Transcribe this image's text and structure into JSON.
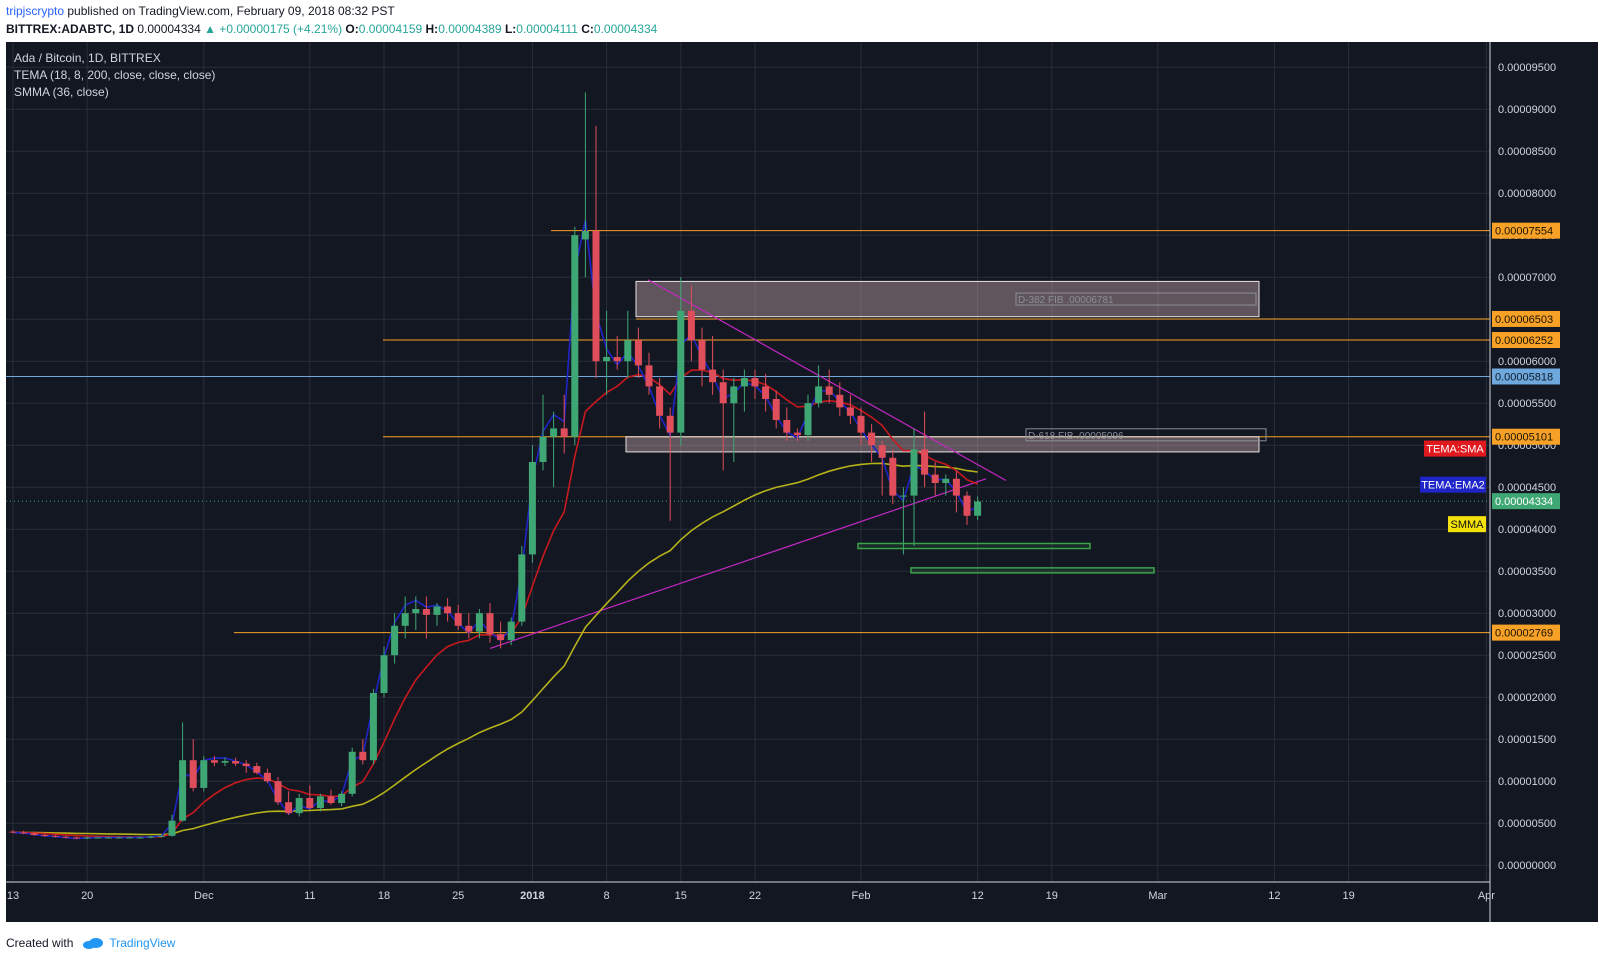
{
  "header": {
    "author": "tripjscrypto",
    "published_text": "published on TradingView.com, February 09, 2018 08:32 PST"
  },
  "ohlc": {
    "symbol": "BITTREX:ADABTC, 1D",
    "price": "0.00004334",
    "change": "▲ +0.00000175 (+4.21%)",
    "o_label": "O:",
    "o_value": "0.00004159",
    "h_label": "H:",
    "h_value": "0.00004389",
    "l_label": "L:",
    "l_value": "0.00004111",
    "c_label": "C:",
    "c_value": "0.00004334"
  },
  "legend": {
    "title": "Ada / Bitcoin, 1D, BITTREX",
    "tema": "TEMA (18, 8, 200, close, close, close)",
    "smma": "SMMA (36, close)"
  },
  "colors": {
    "background": "#131722",
    "grid": "#2a2e39",
    "up": "#3fa774",
    "down": "#e04e5b",
    "tema_blue": "#1f24c8",
    "tema_red": "#c8191e",
    "smma": "#b6b21a",
    "level_orange": "#f7a126",
    "trend_magenta": "#c427c4",
    "blue_level": "#6fa8dc",
    "green_box": "#3aa34a"
  },
  "chart_data": {
    "type": "candlestick",
    "price_axis": {
      "ticks": [
        "0.00009500",
        "0.00009000",
        "0.00008500",
        "0.00008000",
        "0.00007500",
        "0.00007000",
        "0.00006500",
        "0.00006000",
        "0.00005500",
        "0.00005000",
        "0.00004500",
        "0.00004000",
        "0.00003500",
        "0.00003000",
        "0.00002500",
        "0.00002000",
        "0.00001500",
        "0.00001000",
        "0.00000500",
        "0.00000000"
      ],
      "ylim": [
        -2e-06,
        9.8e-05
      ]
    },
    "time_axis": {
      "labels": [
        "13",
        "20",
        "Dec",
        "11",
        "18",
        "25",
        "2018",
        "8",
        "15",
        "22",
        "Feb",
        "12",
        "19",
        "Mar",
        "12",
        "19",
        "Apr"
      ]
    },
    "candles": [
      {
        "d": "2017-11-13",
        "o": 4e-06,
        "h": 4.2e-06,
        "l": 3.8e-06,
        "c": 3.9e-06
      },
      {
        "d": "2017-11-14",
        "o": 3.9e-06,
        "h": 4.1e-06,
        "l": 3.7e-06,
        "c": 3.8e-06
      },
      {
        "d": "2017-11-15",
        "o": 3.8e-06,
        "h": 4e-06,
        "l": 3.5e-06,
        "c": 3.6e-06
      },
      {
        "d": "2017-11-16",
        "o": 3.6e-06,
        "h": 3.8e-06,
        "l": 3.4e-06,
        "c": 3.5e-06
      },
      {
        "d": "2017-11-17",
        "o": 3.5e-06,
        "h": 3.6e-06,
        "l": 3.3e-06,
        "c": 3.4e-06
      },
      {
        "d": "2017-11-18",
        "o": 3.4e-06,
        "h": 3.5e-06,
        "l": 3.2e-06,
        "c": 3.3e-06
      },
      {
        "d": "2017-11-19",
        "o": 3.3e-06,
        "h": 3.4e-06,
        "l": 3.1e-06,
        "c": 3.2e-06
      },
      {
        "d": "2017-11-20",
        "o": 3.2e-06,
        "h": 3.4e-06,
        "l": 3.1e-06,
        "c": 3.3e-06
      },
      {
        "d": "2017-11-21",
        "o": 3.3e-06,
        "h": 3.4e-06,
        "l": 3.2e-06,
        "c": 3.3e-06
      },
      {
        "d": "2017-11-22",
        "o": 3.3e-06,
        "h": 3.4e-06,
        "l": 3.2e-06,
        "c": 3.3e-06
      },
      {
        "d": "2017-11-23",
        "o": 3.3e-06,
        "h": 3.4e-06,
        "l": 3.2e-06,
        "c": 3.3e-06
      },
      {
        "d": "2017-11-24",
        "o": 3.3e-06,
        "h": 3.4e-06,
        "l": 3.2e-06,
        "c": 3.3e-06
      },
      {
        "d": "2017-11-25",
        "o": 3.3e-06,
        "h": 3.4e-06,
        "l": 3.2e-06,
        "c": 3.3e-06
      },
      {
        "d": "2017-11-26",
        "o": 3.3e-06,
        "h": 3.5e-06,
        "l": 3.2e-06,
        "c": 3.4e-06
      },
      {
        "d": "2017-11-27",
        "o": 3.4e-06,
        "h": 3.6e-06,
        "l": 3.3e-06,
        "c": 3.5e-06
      },
      {
        "d": "2017-11-28",
        "o": 3.5e-06,
        "h": 6e-06,
        "l": 3.4e-06,
        "c": 5.3e-06
      },
      {
        "d": "2017-11-29",
        "o": 5.3e-06,
        "h": 1.7e-05,
        "l": 5.2e-06,
        "c": 1.25e-05
      },
      {
        "d": "2017-11-30",
        "o": 1.25e-05,
        "h": 1.5e-05,
        "l": 8.8e-06,
        "c": 9.2e-06
      },
      {
        "d": "2017-12-01",
        "o": 9.2e-06,
        "h": 1.3e-05,
        "l": 8.8e-06,
        "c": 1.25e-05
      },
      {
        "d": "2017-12-02",
        "o": 1.25e-05,
        "h": 1.3e-05,
        "l": 1.18e-05,
        "c": 1.22e-05
      },
      {
        "d": "2017-12-03",
        "o": 1.22e-05,
        "h": 1.28e-05,
        "l": 1.18e-05,
        "c": 1.24e-05
      },
      {
        "d": "2017-12-04",
        "o": 1.24e-05,
        "h": 1.28e-05,
        "l": 1.18e-05,
        "c": 1.21e-05
      },
      {
        "d": "2017-12-05",
        "o": 1.21e-05,
        "h": 1.25e-05,
        "l": 1.1e-05,
        "c": 1.18e-05
      },
      {
        "d": "2017-12-06",
        "o": 1.18e-05,
        "h": 1.22e-05,
        "l": 1.08e-05,
        "c": 1.1e-05
      },
      {
        "d": "2017-12-07",
        "o": 1.1e-05,
        "h": 1.15e-05,
        "l": 9.8e-06,
        "c": 1e-05
      },
      {
        "d": "2017-12-08",
        "o": 1e-05,
        "h": 1.05e-05,
        "l": 7.2e-06,
        "c": 7.5e-06
      },
      {
        "d": "2017-12-09",
        "o": 7.5e-06,
        "h": 8.8e-06,
        "l": 6e-06,
        "c": 6.2e-06
      },
      {
        "d": "2017-12-10",
        "o": 6.2e-06,
        "h": 8.5e-06,
        "l": 5.8e-06,
        "c": 8e-06
      },
      {
        "d": "2017-12-11",
        "o": 8e-06,
        "h": 9.5e-06,
        "l": 6.6e-06,
        "c": 6.8e-06
      },
      {
        "d": "2017-12-12",
        "o": 6.8e-06,
        "h": 8.5e-06,
        "l": 6.4e-06,
        "c": 8.2e-06
      },
      {
        "d": "2017-12-13",
        "o": 8.2e-06,
        "h": 9e-06,
        "l": 7.2e-06,
        "c": 7.4e-06
      },
      {
        "d": "2017-12-14",
        "o": 7.4e-06,
        "h": 8.8e-06,
        "l": 7e-06,
        "c": 8.5e-06
      },
      {
        "d": "2017-12-15",
        "o": 8.5e-06,
        "h": 1.4e-05,
        "l": 8.2e-06,
        "c": 1.35e-05
      },
      {
        "d": "2017-12-16",
        "o": 1.35e-05,
        "h": 1.5e-05,
        "l": 1.2e-05,
        "c": 1.25e-05
      },
      {
        "d": "2017-12-17",
        "o": 1.25e-05,
        "h": 2.1e-05,
        "l": 1.2e-05,
        "c": 2.05e-05
      },
      {
        "d": "2017-12-18",
        "o": 2.05e-05,
        "h": 2.6e-05,
        "l": 2e-05,
        "c": 2.5e-05
      },
      {
        "d": "2017-12-19",
        "o": 2.5e-05,
        "h": 3e-05,
        "l": 2.4e-05,
        "c": 2.85e-05
      },
      {
        "d": "2017-12-20",
        "o": 2.85e-05,
        "h": 3.2e-05,
        "l": 2.7e-05,
        "c": 3e-05
      },
      {
        "d": "2017-12-21",
        "o": 3e-05,
        "h": 3.2e-05,
        "l": 2.8e-05,
        "c": 3.05e-05
      },
      {
        "d": "2017-12-22",
        "o": 3.05e-05,
        "h": 3.2e-05,
        "l": 2.7e-05,
        "c": 2.98e-05
      },
      {
        "d": "2017-12-23",
        "o": 2.98e-05,
        "h": 3.12e-05,
        "l": 2.85e-05,
        "c": 3.08e-05
      },
      {
        "d": "2017-12-24",
        "o": 3.08e-05,
        "h": 3.18e-05,
        "l": 2.9e-05,
        "c": 3e-05
      },
      {
        "d": "2017-12-25",
        "o": 3e-05,
        "h": 3.1e-05,
        "l": 2.8e-05,
        "c": 2.85e-05
      },
      {
        "d": "2017-12-26",
        "o": 2.85e-05,
        "h": 3e-05,
        "l": 2.7e-05,
        "c": 2.78e-05
      },
      {
        "d": "2017-12-27",
        "o": 2.78e-05,
        "h": 3.05e-05,
        "l": 2.7e-05,
        "c": 3e-05
      },
      {
        "d": "2017-12-28",
        "o": 3e-05,
        "h": 3.12e-05,
        "l": 2.65e-05,
        "c": 2.75e-05
      },
      {
        "d": "2017-12-29",
        "o": 2.75e-05,
        "h": 2.9e-05,
        "l": 2.58e-05,
        "c": 2.68e-05
      },
      {
        "d": "2017-12-30",
        "o": 2.68e-05,
        "h": 2.95e-05,
        "l": 2.62e-05,
        "c": 2.9e-05
      },
      {
        "d": "2017-12-31",
        "o": 2.9e-05,
        "h": 3.8e-05,
        "l": 2.85e-05,
        "c": 3.7e-05
      },
      {
        "d": "2018-01-01",
        "o": 3.7e-05,
        "h": 5e-05,
        "l": 3.6e-05,
        "c": 4.8e-05
      },
      {
        "d": "2018-01-02",
        "o": 4.8e-05,
        "h": 5.6e-05,
        "l": 4.7e-05,
        "c": 5.1e-05
      },
      {
        "d": "2018-01-03",
        "o": 5.1e-05,
        "h": 5.4e-05,
        "l": 4.5e-05,
        "c": 5.2e-05
      },
      {
        "d": "2018-01-04",
        "o": 5.2e-05,
        "h": 5.6e-05,
        "l": 4.9e-05,
        "c": 5.1e-05
      },
      {
        "d": "2018-01-05",
        "o": 5.1e-05,
        "h": 7.6e-05,
        "l": 5e-05,
        "c": 7.5e-05
      },
      {
        "d": "2018-01-06",
        "o": 7.45e-05,
        "h": 9.2e-05,
        "l": 7e-05,
        "c": 7.55e-05
      },
      {
        "d": "2018-01-07",
        "o": 7.55e-05,
        "h": 8.8e-05,
        "l": 5.8e-05,
        "c": 6e-05
      },
      {
        "d": "2018-01-08",
        "o": 6e-05,
        "h": 6.6e-05,
        "l": 5.6e-05,
        "c": 6.05e-05
      },
      {
        "d": "2018-01-09",
        "o": 6.05e-05,
        "h": 6.3e-05,
        "l": 5.9e-05,
        "c": 6e-05
      },
      {
        "d": "2018-01-10",
        "o": 6e-05,
        "h": 6.6e-05,
        "l": 5.8e-05,
        "c": 6.25e-05
      },
      {
        "d": "2018-01-11",
        "o": 6.25e-05,
        "h": 6.4e-05,
        "l": 5.8e-05,
        "c": 5.95e-05
      },
      {
        "d": "2018-01-12",
        "o": 5.95e-05,
        "h": 6.1e-05,
        "l": 5.6e-05,
        "c": 5.7e-05
      },
      {
        "d": "2018-01-13",
        "o": 5.7e-05,
        "h": 5.8e-05,
        "l": 5.2e-05,
        "c": 5.35e-05
      },
      {
        "d": "2018-01-14",
        "o": 5.35e-05,
        "h": 5.45e-05,
        "l": 4.1e-05,
        "c": 5.15e-05
      },
      {
        "d": "2018-01-15",
        "o": 5.15e-05,
        "h": 7e-05,
        "l": 5e-05,
        "c": 6.6e-05
      },
      {
        "d": "2018-01-16",
        "o": 6.6e-05,
        "h": 6.9e-05,
        "l": 6e-05,
        "c": 6.25e-05
      },
      {
        "d": "2018-01-17",
        "o": 6.25e-05,
        "h": 6.4e-05,
        "l": 5.7e-05,
        "c": 5.9e-05
      },
      {
        "d": "2018-01-18",
        "o": 5.9e-05,
        "h": 6.3e-05,
        "l": 5.6e-05,
        "c": 5.75e-05
      },
      {
        "d": "2018-01-19",
        "o": 5.75e-05,
        "h": 5.9e-05,
        "l": 4.7e-05,
        "c": 5.5e-05
      },
      {
        "d": "2018-01-20",
        "o": 5.5e-05,
        "h": 5.8e-05,
        "l": 4.8e-05,
        "c": 5.7e-05
      },
      {
        "d": "2018-01-21",
        "o": 5.7e-05,
        "h": 5.9e-05,
        "l": 5.4e-05,
        "c": 5.8e-05
      },
      {
        "d": "2018-01-22",
        "o": 5.8e-05,
        "h": 5.9e-05,
        "l": 5.55e-05,
        "c": 5.7e-05
      },
      {
        "d": "2018-01-23",
        "o": 5.7e-05,
        "h": 5.85e-05,
        "l": 5.4e-05,
        "c": 5.55e-05
      },
      {
        "d": "2018-01-24",
        "o": 5.55e-05,
        "h": 5.65e-05,
        "l": 5.2e-05,
        "c": 5.3e-05
      },
      {
        "d": "2018-01-25",
        "o": 5.3e-05,
        "h": 5.45e-05,
        "l": 5.05e-05,
        "c": 5.15e-05
      },
      {
        "d": "2018-01-26",
        "o": 5.15e-05,
        "h": 5.2e-05,
        "l": 5.05e-05,
        "c": 5.12e-05
      },
      {
        "d": "2018-01-27",
        "o": 5.12e-05,
        "h": 5.6e-05,
        "l": 5.05e-05,
        "c": 5.5e-05
      },
      {
        "d": "2018-01-28",
        "o": 5.5e-05,
        "h": 5.95e-05,
        "l": 5.45e-05,
        "c": 5.7e-05
      },
      {
        "d": "2018-01-29",
        "o": 5.7e-05,
        "h": 5.9e-05,
        "l": 5.5e-05,
        "c": 5.6e-05
      },
      {
        "d": "2018-01-30",
        "o": 5.6e-05,
        "h": 5.75e-05,
        "l": 5.35e-05,
        "c": 5.45e-05
      },
      {
        "d": "2018-01-31",
        "o": 5.45e-05,
        "h": 5.6e-05,
        "l": 5.25e-05,
        "c": 5.35e-05
      },
      {
        "d": "2018-02-01",
        "o": 5.35e-05,
        "h": 5.45e-05,
        "l": 5e-05,
        "c": 5.15e-05
      },
      {
        "d": "2018-02-02",
        "o": 5.15e-05,
        "h": 5.25e-05,
        "l": 4.8e-05,
        "c": 5e-05
      },
      {
        "d": "2018-02-03",
        "o": 5e-05,
        "h": 5.05e-05,
        "l": 4.4e-05,
        "c": 4.85e-05
      },
      {
        "d": "2018-02-04",
        "o": 4.85e-05,
        "h": 4.95e-05,
        "l": 4.3e-05,
        "c": 4.4e-05
      },
      {
        "d": "2018-02-05",
        "o": 4.4e-05,
        "h": 4.5e-05,
        "l": 3.7e-05,
        "c": 4.4e-05
      },
      {
        "d": "2018-02-06",
        "o": 4.4e-05,
        "h": 5.2e-05,
        "l": 3.8e-05,
        "c": 4.95e-05
      },
      {
        "d": "2018-02-07",
        "o": 4.95e-05,
        "h": 5.4e-05,
        "l": 4.5e-05,
        "c": 4.65e-05
      },
      {
        "d": "2018-02-08",
        "o": 4.65e-05,
        "h": 4.8e-05,
        "l": 4.4e-05,
        "c": 4.55e-05
      },
      {
        "d": "2018-02-09",
        "o": 4.55e-05,
        "h": 4.65e-05,
        "l": 4.4e-05,
        "c": 4.6e-05
      },
      {
        "d": "2018-02-10",
        "o": 4.6e-05,
        "h": 4.7e-05,
        "l": 4.2e-05,
        "c": 4.4e-05
      },
      {
        "d": "2018-02-11",
        "o": 4.4e-05,
        "h": 4.45e-05,
        "l": 4.05e-05,
        "c": 4.16e-05
      },
      {
        "d": "2018-02-12",
        "o": 4.16e-05,
        "h": 4.39e-05,
        "l": 4.11e-05,
        "c": 4.33e-05
      }
    ],
    "horizontal_levels": [
      {
        "price": 7.554e-05,
        "label": "0.00007554",
        "color": "orange"
      },
      {
        "price": 6.503e-05,
        "label": "0.00006503",
        "color": "orange"
      },
      {
        "price": 6.252e-05,
        "label": "0.00006252",
        "color": "orange"
      },
      {
        "price": 5.818e-05,
        "label": "0.00005818",
        "color": "blue"
      },
      {
        "price": 5.101e-05,
        "label": "0.00005101",
        "color": "orange"
      },
      {
        "price": 2.769e-05,
        "label": "0.00002769",
        "color": "orange"
      }
    ],
    "current_price": {
      "price": 4.334e-05,
      "label": "0.00004334"
    },
    "indicator_tags": [
      "TEMA:SMA",
      "TEMA:EMA2",
      "SMMA"
    ],
    "fib_boxes": [
      {
        "label": "D-382 FIB .00006781",
        "top": 6.95e-05,
        "bottom": 6.53e-05
      },
      {
        "label": "D-618 FIB .00005096",
        "top": 5.1e-05,
        "bottom": 4.92e-05
      }
    ]
  },
  "footer": {
    "created_with": "Created with",
    "brand": "TradingView"
  }
}
